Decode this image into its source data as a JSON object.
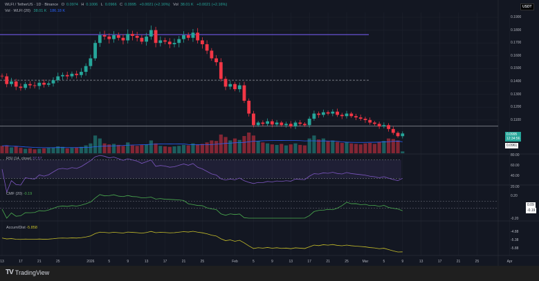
{
  "header": {
    "symbol": "WLFI / TetherUS · 1D · Binance",
    "o_label": "O",
    "o": "0.0974",
    "h_label": "H",
    "h": "0.1006",
    "l_label": "L",
    "l": "0.0966",
    "c_label": "C",
    "c": "0.0995",
    "change": "+0.0021 (+2.16%)",
    "vol_label": "Vol",
    "vol": "38.01 K",
    "vol_change": "+0.0021 (+2.16%)"
  },
  "volume_indicator": {
    "label": "Vol · WLFI (20)",
    "value": "38.01 K",
    "ma": "186.18 K"
  },
  "currency_button": "USDT",
  "price_axis": [
    "0.1900",
    "0.1800",
    "0.1700",
    "0.1600",
    "0.1500",
    "0.1400",
    "0.1300",
    "0.1200",
    "0.1100"
  ],
  "price_badges": {
    "last": "0.0995",
    "countdown": "12:34:56",
    "low": "0.0961"
  },
  "rsi": {
    "label": "RSI (14, close)",
    "value": "37.57",
    "axis": [
      "80.00",
      "60.00",
      "40.00",
      "20.00"
    ]
  },
  "cmf": {
    "label": "CMF (20)",
    "value": "-0.19",
    "axis": [
      "0.20",
      "-0.20"
    ],
    "badges": [
      "0.09",
      "-0.19"
    ]
  },
  "ad": {
    "label": "Accum/Dist",
    "value": "-5.858",
    "axis": [
      "-4.88",
      "-5.38",
      "-5.88"
    ]
  },
  "x_axis": [
    [
      "13",
      0
    ],
    [
      "17",
      4
    ],
    [
      "21",
      8
    ],
    [
      "25",
      12
    ],
    [
      "2026",
      19
    ],
    [
      "5",
      23
    ],
    [
      "9",
      27
    ],
    [
      "13",
      31
    ],
    [
      "17",
      35
    ],
    [
      "21",
      39
    ],
    [
      "25",
      43
    ],
    [
      "Feb",
      50
    ],
    [
      "5",
      54
    ],
    [
      "9",
      58
    ],
    [
      "13",
      62
    ],
    [
      "17",
      66
    ],
    [
      "21",
      70
    ],
    [
      "25",
      74
    ],
    [
      "Mar",
      78
    ],
    [
      "5",
      82
    ],
    [
      "9",
      86
    ],
    [
      "13",
      90
    ],
    [
      "17",
      94
    ],
    [
      "21",
      98
    ],
    [
      "25",
      102
    ],
    [
      "Apr",
      109
    ]
  ],
  "footer": {
    "brand": "TradingView",
    "logo": "TV"
  },
  "colors": {
    "up": "#26a69a",
    "down": "#f23645",
    "rsi": "#7e57c2",
    "cmf": "#4caf50",
    "ad": "#c9c12a",
    "vol_ma": "#2962ff"
  },
  "chart_data": {
    "type": "candlestick",
    "start_date": "2025-12-13",
    "closes": [
      0.144,
      0.138,
      0.14,
      0.136,
      0.135,
      0.138,
      0.137,
      0.1365,
      0.139,
      0.1375,
      0.1385,
      0.141,
      0.144,
      0.145,
      0.144,
      0.146,
      0.145,
      0.1475,
      0.152,
      0.158,
      0.17,
      0.176,
      0.175,
      0.173,
      0.176,
      0.174,
      0.172,
      0.177,
      0.1755,
      0.174,
      0.171,
      0.175,
      0.18,
      0.17,
      0.172,
      0.171,
      0.169,
      0.17,
      0.173,
      0.176,
      0.174,
      0.178,
      0.172,
      0.169,
      0.164,
      0.158,
      0.155,
      0.142,
      0.136,
      0.138,
      0.134,
      0.137,
      0.125,
      0.115,
      0.106,
      0.108,
      0.107,
      0.109,
      0.1065,
      0.108,
      0.106,
      0.107,
      0.105,
      0.108,
      0.107,
      0.106,
      0.111,
      0.115,
      0.114,
      0.116,
      0.115,
      0.1165,
      0.114,
      0.113,
      0.115,
      0.113,
      0.112,
      0.111,
      0.11,
      0.108,
      0.107,
      0.105,
      0.106,
      0.103,
      0.1,
      0.0974,
      0.0995
    ],
    "volumes_k": [
      150,
      160,
      120,
      140,
      110,
      90,
      100,
      80,
      90,
      100,
      110,
      120,
      140,
      130,
      100,
      110,
      120,
      130,
      160,
      200,
      360,
      300,
      200,
      180,
      190,
      170,
      150,
      220,
      160,
      150,
      170,
      180,
      260,
      200,
      150,
      140,
      130,
      140,
      150,
      170,
      160,
      200,
      180,
      190,
      220,
      260,
      250,
      380,
      330,
      260,
      300,
      270,
      350,
      420,
      360,
      250,
      220,
      200,
      180,
      170,
      190,
      160,
      180,
      200,
      170,
      160,
      300,
      360,
      280,
      300,
      250,
      260,
      230,
      210,
      230,
      200,
      190,
      180,
      200,
      210,
      190,
      230,
      250,
      300,
      290,
      260,
      38
    ],
    "hlines": [
      {
        "price": 0.1765,
        "style": "solid",
        "color": "#7b61ff"
      },
      {
        "price": 0.141,
        "style": "dashed",
        "color": "#9598a1"
      },
      {
        "price": 0.1052,
        "style": "solid",
        "color": "#9598a1"
      }
    ],
    "ylim": [
      0.0955,
      0.1935
    ]
  }
}
